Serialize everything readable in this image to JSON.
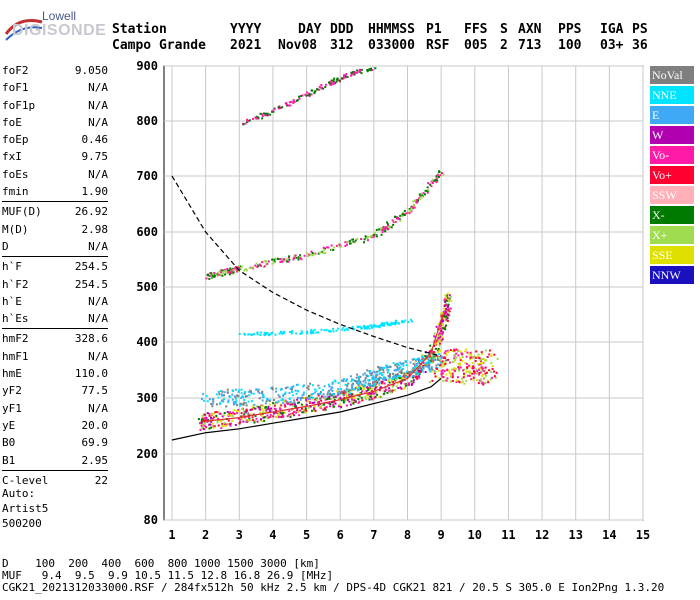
{
  "logo": {
    "line1": "Lowell",
    "line2": "DIGISONDE"
  },
  "header": {
    "labels": [
      "Station",
      "YYYY",
      "DAY",
      "DDD",
      "HHMMSS",
      "P1",
      "FFS",
      "S",
      "AXN",
      "PPS",
      "IGA",
      "PS"
    ],
    "values": [
      "Campo Grande",
      "2021",
      "Nov08",
      "312",
      "033000",
      "RSF",
      "005",
      "2",
      "713",
      "100",
      "03+",
      "36"
    ]
  },
  "params": [
    {
      "k": "foF2",
      "v": "9.050"
    },
    {
      "k": "foF1",
      "v": "N/A"
    },
    {
      "k": "foF1p",
      "v": "N/A"
    },
    {
      "k": "foE",
      "v": "N/A"
    },
    {
      "k": "foEp",
      "v": "0.46"
    },
    {
      "k": "fxI",
      "v": "9.75"
    },
    {
      "k": "foEs",
      "v": "N/A"
    },
    {
      "k": "fmin",
      "v": "1.90"
    },
    {
      "sep": true
    },
    {
      "k": "MUF(D)",
      "v": "26.92"
    },
    {
      "k": "M(D)",
      "v": "2.98"
    },
    {
      "k": "D",
      "v": "N/A"
    },
    {
      "sep": true
    },
    {
      "k": "h`F",
      "v": "254.5"
    },
    {
      "k": "h`F2",
      "v": "254.5"
    },
    {
      "k": "h`E",
      "v": "N/A"
    },
    {
      "k": "h`Es",
      "v": "N/A"
    },
    {
      "sep": true
    },
    {
      "k": "hmF2",
      "v": "328.6"
    },
    {
      "k": "hmF1",
      "v": "N/A"
    },
    {
      "k": "hmE",
      "v": "110.0"
    },
    {
      "k": "yF2",
      "v": "77.5"
    },
    {
      "k": "yF1",
      "v": "N/A"
    },
    {
      "k": "yE",
      "v": "20.0"
    },
    {
      "k": "B0",
      "v": "69.9"
    },
    {
      "k": "B1",
      "v": "2.95"
    },
    {
      "sep": true
    },
    {
      "k": "C-level",
      "v": "22"
    }
  ],
  "auto": [
    "Auto:",
    "Artist5",
    "500200"
  ],
  "legend": [
    {
      "label": "NoVal",
      "color": "#7f7f7f"
    },
    {
      "label": "NNE",
      "color": "#00e5ff"
    },
    {
      "label": "E",
      "color": "#3fa9f5"
    },
    {
      "label": "W",
      "color": "#b000b0"
    },
    {
      "label": "Vo-",
      "color": "#ff1aa8"
    },
    {
      "label": "Vo+",
      "color": "#ff0030"
    },
    {
      "label": "SSW",
      "color": "#ffb0b8"
    },
    {
      "label": "X-",
      "color": "#007a00"
    },
    {
      "label": "X+",
      "color": "#a0dc50"
    },
    {
      "label": "SSE",
      "color": "#e0e000"
    },
    {
      "label": "NNW",
      "color": "#1a10c0"
    }
  ],
  "footer": {
    "line1": "D    100  200  400  600  800 1000 1500 3000 [km]",
    "line2": "MUF   9.4  9.5  9.9 10.5 11.5 12.8 16.8 26.9 [MHz]",
    "line3": "CGK21_2021312033000.RSF / 284fx512h 50 kHz 2.5 km / DPS-4D CGK21 821 / 20.5 S 305.0 E Ion2Png 1.3.20"
  },
  "chart_data": {
    "type": "scatter",
    "xlim": [
      1,
      15
    ],
    "ylim": [
      80,
      900
    ],
    "x_ticks": [
      1,
      2,
      3,
      4,
      5,
      6,
      7,
      8,
      9,
      10,
      11,
      12,
      13,
      14,
      15
    ],
    "y_ticks": [
      80,
      200,
      300,
      400,
      500,
      600,
      700,
      800,
      900
    ],
    "grid": true,
    "series": [
      {
        "color": "#e03030",
        "points": [
          [
            1.9,
            258
          ],
          [
            3,
            265
          ],
          [
            4,
            275
          ],
          [
            5,
            285
          ],
          [
            6,
            297
          ],
          [
            7,
            312
          ],
          [
            8,
            335
          ],
          [
            8.7,
            380
          ],
          [
            9.05,
            450
          ]
        ]
      },
      {
        "color": "#000000",
        "points": [
          [
            1,
            225
          ],
          [
            2,
            238
          ],
          [
            3,
            245
          ],
          [
            4,
            255
          ],
          [
            5,
            265
          ],
          [
            6,
            275
          ],
          [
            7,
            290
          ],
          [
            8,
            305
          ],
          [
            8.7,
            320
          ],
          [
            9,
            335
          ]
        ]
      },
      {
        "color": "#000000",
        "dashed": true,
        "points": [
          [
            1,
            700
          ],
          [
            2,
            600
          ],
          [
            3,
            530
          ],
          [
            4,
            490
          ],
          [
            5,
            458
          ],
          [
            6,
            432
          ],
          [
            7,
            410
          ],
          [
            8,
            390
          ],
          [
            9,
            375
          ]
        ]
      }
    ]
  }
}
